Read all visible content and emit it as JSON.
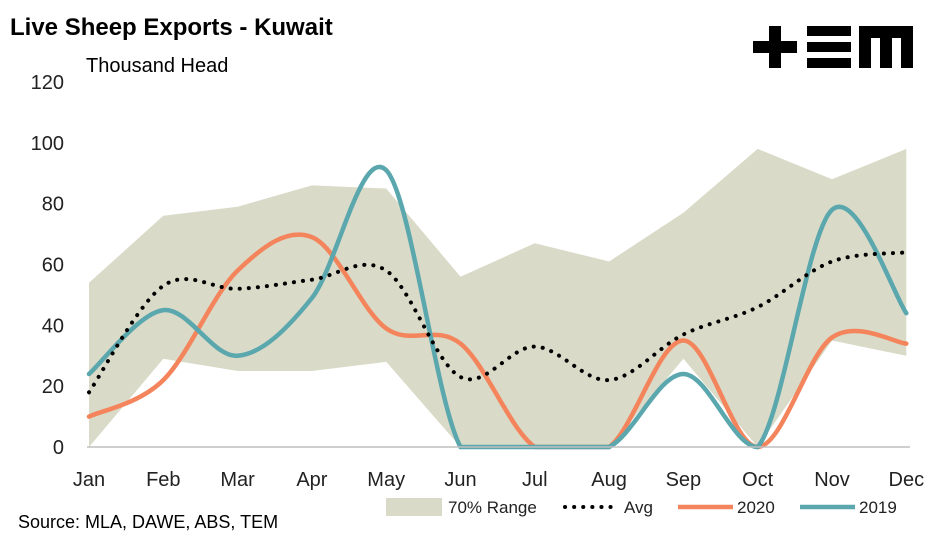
{
  "header": {
    "title": "Live Sheep Exports - Kuwait",
    "logo_text": "+EM",
    "source": "Source: MLA, DAWE, ABS, TEM"
  },
  "chart_data": {
    "type": "line",
    "title": "Live Sheep Exports - Kuwait",
    "ylabel": "Thousand Head",
    "xlabel": "",
    "categories": [
      "Jan",
      "Feb",
      "Mar",
      "Apr",
      "May",
      "Jun",
      "Jul",
      "Aug",
      "Sep",
      "Oct",
      "Nov",
      "Dec"
    ],
    "ylim": [
      0,
      120
    ],
    "yticks": [
      0,
      20,
      40,
      60,
      80,
      100,
      120
    ],
    "grid": false,
    "legend": "bottom-right",
    "range": {
      "name": "70% Range",
      "upper": [
        54,
        76,
        79,
        86,
        85,
        56,
        67,
        61,
        77,
        98,
        88,
        98
      ],
      "lower": [
        0,
        29,
        25,
        25,
        28,
        0,
        0,
        0,
        29,
        0,
        35,
        30
      ]
    },
    "series": [
      {
        "name": "Avg",
        "values": [
          18,
          53,
          52,
          55,
          58,
          23,
          33,
          22,
          37,
          46,
          61,
          64
        ]
      },
      {
        "name": "2020",
        "values": [
          10,
          22,
          58,
          69,
          39,
          34,
          0,
          0,
          35,
          0,
          36,
          34
        ]
      },
      {
        "name": "2019",
        "values": [
          24,
          45,
          30,
          49,
          91,
          0,
          0,
          0,
          24,
          0,
          78,
          44
        ]
      }
    ],
    "colors": {
      "range": "#d9dac7",
      "avg": "#000000",
      "2020": "#f4845b",
      "2019": "#5ba7ae"
    }
  }
}
